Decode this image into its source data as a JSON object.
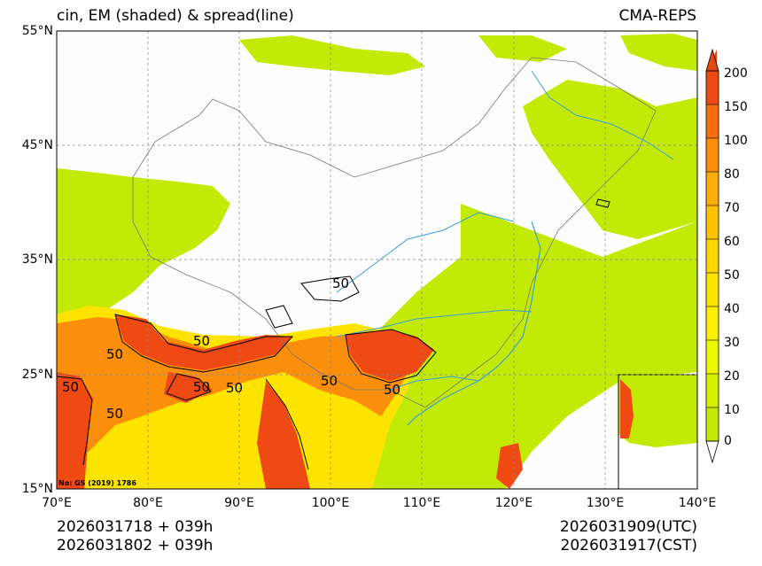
{
  "title_left": "cin, EM (shaded) & spread(line)",
  "title_right": "CMA-REPS",
  "lat_labels": [
    "55°N",
    "45°N",
    "35°N",
    "25°N",
    "15°N"
  ],
  "lon_labels": [
    "70°E",
    "80°E",
    "90°E",
    "100°E",
    "110°E",
    "120°E",
    "130°E",
    "140°E"
  ],
  "colorbar": {
    "ticks": [
      "200",
      "150",
      "100",
      "80",
      "70",
      "60",
      "50",
      "40",
      "30",
      "20",
      "10",
      "0"
    ],
    "colors": [
      "#f04a14",
      "#f76d10",
      "#fb8e0a",
      "#fcac06",
      "#fdc302",
      "#fdd702",
      "#fde300",
      "#fbf002",
      "#eef800",
      "#d4f000",
      "#c2ea05"
    ]
  },
  "contour_labels": [
    "50",
    "50",
    "50",
    "50",
    "50",
    "50",
    "50",
    "50",
    "50"
  ],
  "credit": "No: GS (2019) 1786",
  "footer": {
    "init_line1": "2026031718  +  039h",
    "init_line2": "2026031802  +  039h",
    "valid_utc": "2026031909(UTC)",
    "valid_cst": "2026031917(CST)"
  }
}
